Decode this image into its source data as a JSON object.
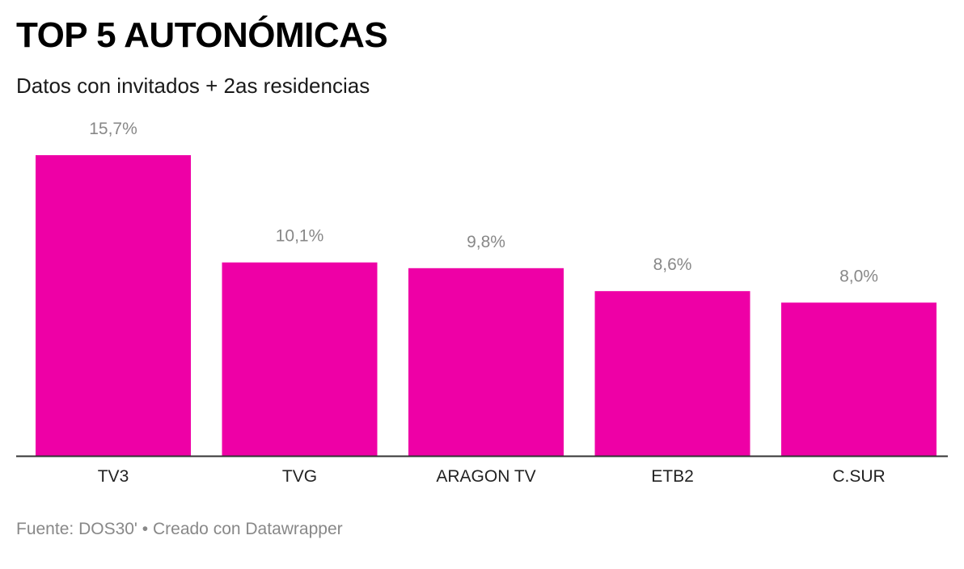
{
  "header": {
    "title": "TOP 5 AUTONÓMICAS",
    "subtitle": "Datos con invitados + 2as residencias"
  },
  "footer": {
    "source_label": "Fuente:",
    "source": "DOS30'",
    "separator": "•",
    "credit": "Creado con Datawrapper"
  },
  "colors": {
    "bar": "#ee00a6",
    "axis": "#333333",
    "value_label": "#888888",
    "category_label": "#222222"
  },
  "chart_data": {
    "type": "bar",
    "categories": [
      "TV3",
      "TVG",
      "ARAGON TV",
      "ETB2",
      "C.SUR"
    ],
    "values": [
      15.7,
      10.1,
      9.8,
      8.6,
      8.0
    ],
    "value_labels": [
      "15,7%",
      "10,1%",
      "9,8%",
      "8,6%",
      "8,0%"
    ],
    "unit": "%",
    "ylim": [
      0,
      15.7
    ],
    "grid": false,
    "legend": "none"
  }
}
